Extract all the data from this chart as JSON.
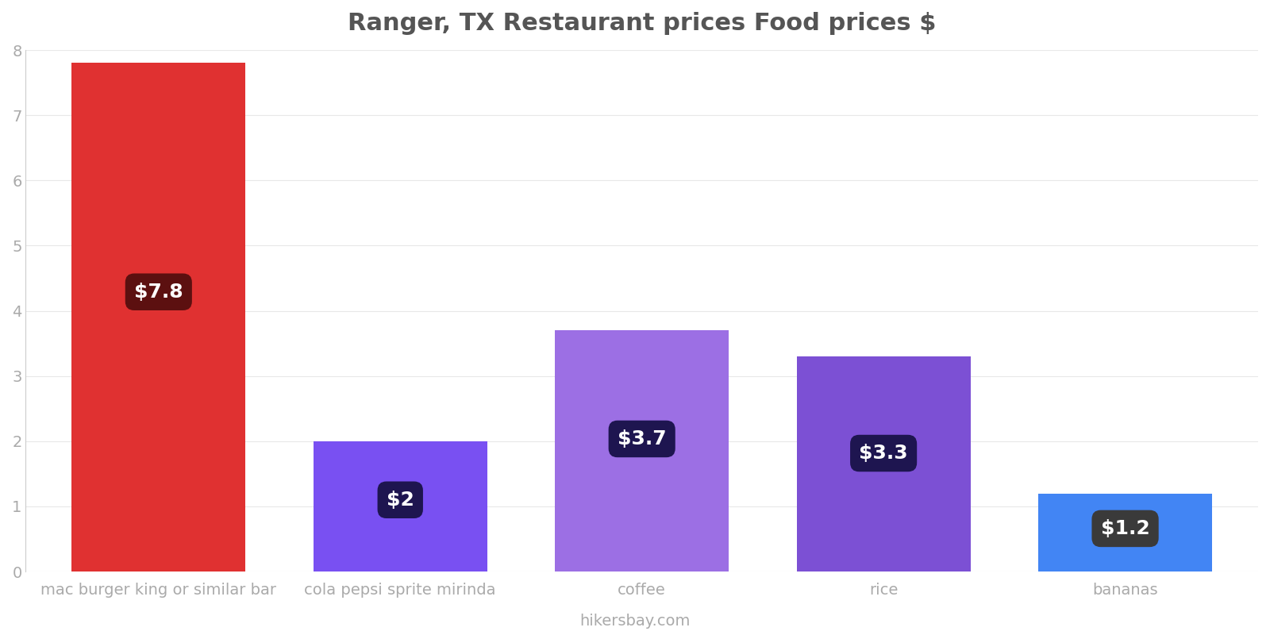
{
  "title": "Ranger, TX Restaurant prices Food prices $",
  "categories": [
    "mac burger king or similar bar",
    "cola pepsi sprite mirinda",
    "coffee",
    "rice",
    "bananas"
  ],
  "values": [
    7.8,
    2.0,
    3.7,
    3.3,
    1.2
  ],
  "labels": [
    "$7.8",
    "$2",
    "$3.7",
    "$3.3",
    "$1.2"
  ],
  "bar_colors": [
    "#e03131",
    "#7950f2",
    "#9c6fe4",
    "#7c50d4",
    "#4285f4"
  ],
  "label_box_colors": [
    "#5c1010",
    "#1e1550",
    "#1e1550",
    "#1e1550",
    "#3a3a3a"
  ],
  "ylim": [
    0,
    8
  ],
  "yticks": [
    0,
    1,
    2,
    3,
    4,
    5,
    6,
    7,
    8
  ],
  "background_color": "#ffffff",
  "title_color": "#555555",
  "tick_color": "#aaaaaa",
  "watermark": "hikersbay.com",
  "title_fontsize": 22,
  "label_fontsize": 18,
  "tick_fontsize": 14,
  "watermark_fontsize": 14,
  "bar_width": 0.72
}
